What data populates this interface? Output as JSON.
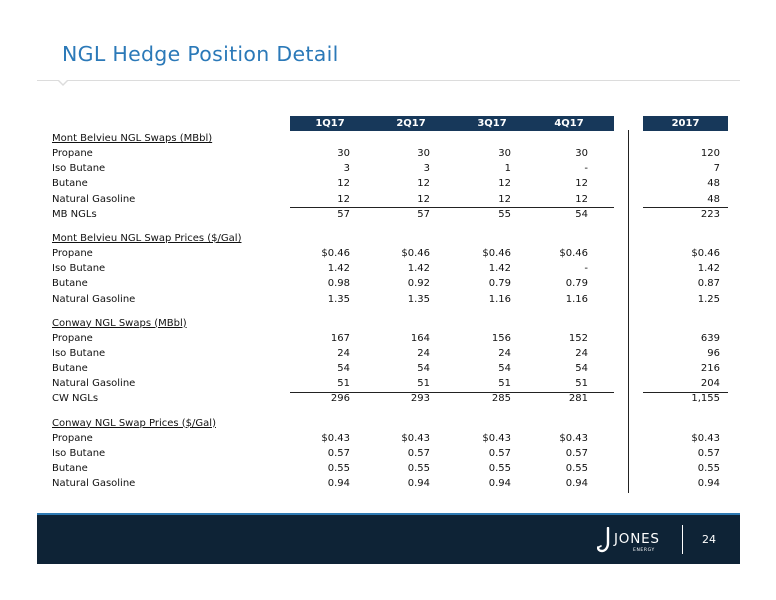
{
  "title": "NGL Hedge Position Detail",
  "columns": [
    "1Q17",
    "2Q17",
    "3Q17",
    "4Q17",
    "2017"
  ],
  "sections": [
    {
      "heading": "Mont Belvieu NGL Swaps (MBbl)",
      "rows": [
        {
          "label": "Propane",
          "values": [
            "30",
            "30",
            "30",
            "30",
            "120"
          ]
        },
        {
          "label": "Iso Butane",
          "values": [
            "3",
            "3",
            "1",
            "-",
            "7"
          ]
        },
        {
          "label": "Butane",
          "values": [
            "12",
            "12",
            "12",
            "12",
            "48"
          ]
        },
        {
          "label": "Natural Gasoline",
          "values": [
            "12",
            "12",
            "12",
            "12",
            "48"
          ]
        },
        {
          "label": "MB NGLs",
          "values": [
            "57",
            "57",
            "55",
            "54",
            "223"
          ]
        }
      ]
    },
    {
      "heading": "Mont Belvieu NGL Swap Prices ($/Gal)",
      "rows": [
        {
          "label": "Propane",
          "values": [
            "$0.46",
            "$0.46",
            "$0.46",
            "$0.46",
            "$0.46"
          ]
        },
        {
          "label": "Iso Butane",
          "values": [
            "1.42",
            "1.42",
            "1.42",
            "-",
            "1.42"
          ]
        },
        {
          "label": "Butane",
          "values": [
            "0.98",
            "0.92",
            "0.79",
            "0.79",
            "0.87"
          ]
        },
        {
          "label": "Natural Gasoline",
          "values": [
            "1.35",
            "1.35",
            "1.16",
            "1.16",
            "1.25"
          ]
        }
      ]
    },
    {
      "heading": "Conway NGL Swaps (MBbl)",
      "rows": [
        {
          "label": "Propane",
          "values": [
            "167",
            "164",
            "156",
            "152",
            "639"
          ]
        },
        {
          "label": "Iso Butane",
          "values": [
            "24",
            "24",
            "24",
            "24",
            "96"
          ]
        },
        {
          "label": "Butane",
          "values": [
            "54",
            "54",
            "54",
            "54",
            "216"
          ]
        },
        {
          "label": "Natural Gasoline",
          "values": [
            "51",
            "51",
            "51",
            "51",
            "204"
          ]
        },
        {
          "label": "CW NGLs",
          "values": [
            "296",
            "293",
            "285",
            "281",
            "1,155"
          ]
        }
      ]
    },
    {
      "heading": "Conway NGL Swap Prices ($/Gal)",
      "rows": [
        {
          "label": "Propane",
          "values": [
            "$0.43",
            "$0.43",
            "$0.43",
            "$0.43",
            "$0.43"
          ]
        },
        {
          "label": "Iso Butane",
          "values": [
            "0.57",
            "0.57",
            "0.57",
            "0.57",
            "0.57"
          ]
        },
        {
          "label": "Butane",
          "values": [
            "0.55",
            "0.55",
            "0.55",
            "0.55",
            "0.55"
          ]
        },
        {
          "label": "Natural Gasoline",
          "values": [
            "0.94",
            "0.94",
            "0.94",
            "0.94",
            "0.94"
          ]
        }
      ]
    }
  ],
  "footer": {
    "logo_text": "JONES",
    "logo_sub": "ENERGY",
    "page_number": "24"
  },
  "colors": {
    "title": "#2b79b8",
    "header_bar": "#17385a",
    "footer": "#0e2336",
    "footer_accent": "#2e7ab4"
  }
}
